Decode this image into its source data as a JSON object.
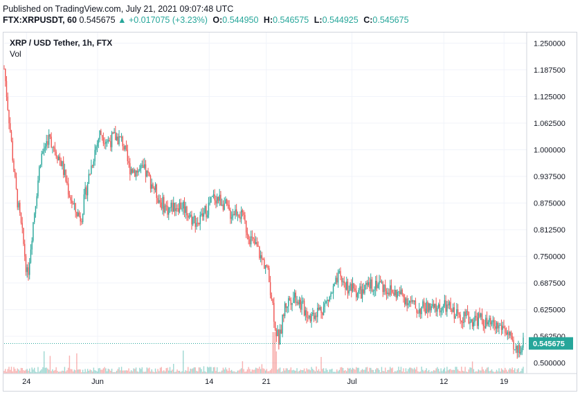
{
  "header": {
    "published": "Published on TradingView.com, July 21, 2021 09:07:48 UTC",
    "symbol": "FTX:XRPUSDT, 60",
    "price": "0.545675",
    "change": "+0.017075 (+3.23%)",
    "o_label": "O:",
    "o_value": "0.544950",
    "h_label": "H:",
    "h_value": "0.546575",
    "l_label": "L:",
    "l_value": "0.544925",
    "c_label": "C:",
    "c_value": "0.545675"
  },
  "legend": {
    "title": "XRP / USD Tether, 1h, FTX",
    "volume": "Vol"
  },
  "last_price_label": "0.545675",
  "colors": {
    "up": "#26a69a",
    "down": "#ef5350",
    "grid": "#f0f3fa",
    "axis": "#d1d4dc"
  },
  "chart_data": {
    "type": "candlestick",
    "title": "XRP / USD Tether, 1h, FTX",
    "y_ticks": [
      "1.250000",
      "1.187500",
      "1.125000",
      "1.062500",
      "1.000000",
      "0.937500",
      "0.875000",
      "0.812500",
      "0.750000",
      "0.687500",
      "0.625000",
      "0.562500",
      "0.500000"
    ],
    "y_tick_values": [
      1.25,
      1.1875,
      1.125,
      1.0625,
      1.0,
      0.9375,
      0.875,
      0.8125,
      0.75,
      0.6875,
      0.625,
      0.5625,
      0.5
    ],
    "ylim": [
      0.475,
      1.275
    ],
    "x_ticks": [
      {
        "label": "24",
        "t": 0.043
      },
      {
        "label": "Jun",
        "t": 0.18
      },
      {
        "label": "14",
        "t": 0.395
      },
      {
        "label": "21",
        "t": 0.505
      },
      {
        "label": "Jul",
        "t": 0.67
      },
      {
        "label": "12",
        "t": 0.847
      },
      {
        "label": "19",
        "t": 0.963
      }
    ],
    "last_price": 0.545675,
    "price_path": [
      [
        0.0,
        1.19
      ],
      [
        0.012,
        1.04
      ],
      [
        0.022,
        0.91
      ],
      [
        0.035,
        0.8
      ],
      [
        0.045,
        0.7
      ],
      [
        0.055,
        0.82
      ],
      [
        0.07,
        0.98
      ],
      [
        0.085,
        1.03
      ],
      [
        0.095,
        1.01
      ],
      [
        0.11,
        0.97
      ],
      [
        0.125,
        0.9
      ],
      [
        0.135,
        0.86
      ],
      [
        0.148,
        0.84
      ],
      [
        0.16,
        0.92
      ],
      [
        0.175,
        1.0
      ],
      [
        0.185,
        1.04
      ],
      [
        0.2,
        1.02
      ],
      [
        0.215,
        1.03
      ],
      [
        0.228,
        1.02
      ],
      [
        0.24,
        0.96
      ],
      [
        0.255,
        0.95
      ],
      [
        0.27,
        0.95
      ],
      [
        0.285,
        0.92
      ],
      [
        0.3,
        0.88
      ],
      [
        0.315,
        0.86
      ],
      [
        0.33,
        0.87
      ],
      [
        0.345,
        0.87
      ],
      [
        0.36,
        0.84
      ],
      [
        0.375,
        0.83
      ],
      [
        0.39,
        0.86
      ],
      [
        0.405,
        0.89
      ],
      [
        0.42,
        0.88
      ],
      [
        0.435,
        0.85
      ],
      [
        0.45,
        0.86
      ],
      [
        0.462,
        0.83
      ],
      [
        0.475,
        0.79
      ],
      [
        0.487,
        0.77
      ],
      [
        0.497,
        0.74
      ],
      [
        0.505,
        0.73
      ],
      [
        0.515,
        0.66
      ],
      [
        0.523,
        0.58
      ],
      [
        0.53,
        0.55
      ],
      [
        0.54,
        0.63
      ],
      [
        0.55,
        0.65
      ],
      [
        0.56,
        0.66
      ],
      [
        0.575,
        0.63
      ],
      [
        0.59,
        0.61
      ],
      [
        0.6,
        0.62
      ],
      [
        0.615,
        0.63
      ],
      [
        0.63,
        0.66
      ],
      [
        0.645,
        0.7
      ],
      [
        0.66,
        0.68
      ],
      [
        0.675,
        0.67
      ],
      [
        0.69,
        0.665
      ],
      [
        0.705,
        0.68
      ],
      [
        0.72,
        0.69
      ],
      [
        0.735,
        0.675
      ],
      [
        0.75,
        0.665
      ],
      [
        0.765,
        0.66
      ],
      [
        0.78,
        0.645
      ],
      [
        0.795,
        0.625
      ],
      [
        0.81,
        0.63
      ],
      [
        0.825,
        0.625
      ],
      [
        0.84,
        0.63
      ],
      [
        0.855,
        0.63
      ],
      [
        0.87,
        0.615
      ],
      [
        0.885,
        0.61
      ],
      [
        0.9,
        0.6
      ],
      [
        0.915,
        0.605
      ],
      [
        0.93,
        0.59
      ],
      [
        0.945,
        0.585
      ],
      [
        0.96,
        0.585
      ],
      [
        0.972,
        0.565
      ],
      [
        0.982,
        0.525
      ],
      [
        0.992,
        0.535
      ],
      [
        1.0,
        0.546
      ]
    ]
  }
}
